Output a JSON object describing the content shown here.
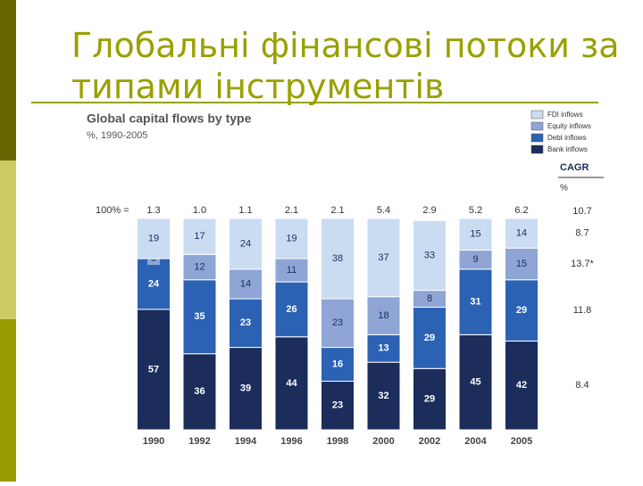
{
  "slide_title": "Глобальні фінансові потоки за типами інструментів",
  "chart_data": {
    "type": "stacked_bar",
    "title": "Global capital flows by type",
    "subtitle": "%, 1990-2005",
    "categories": [
      "1990",
      "1992",
      "1994",
      "1996",
      "1998",
      "2000",
      "2002",
      "2004",
      "2005"
    ],
    "ylim": [
      0,
      100
    ],
    "series": [
      {
        "name": "FDI inflows",
        "color": "#c9dcf2",
        "values": [
          19,
          17,
          24,
          19,
          38,
          37,
          33,
          15,
          14
        ]
      },
      {
        "name": "Equity inflows",
        "color": "#8ea5d6",
        "values": [
          0,
          12,
          14,
          11,
          23,
          18,
          8,
          9,
          15
        ]
      },
      {
        "name": "Debt inflows",
        "color": "#2c62b4",
        "values": [
          24,
          35,
          23,
          26,
          16,
          13,
          29,
          31,
          29
        ]
      },
      {
        "name": "Bank inflows",
        "color": "#1c2d5c",
        "values": [
          57,
          36,
          39,
          44,
          23,
          32,
          29,
          45,
          42
        ]
      }
    ],
    "totals": {
      "label": "100% =",
      "values": [
        1.3,
        1.0,
        1.1,
        2.1,
        2.1,
        5.4,
        2.9,
        5.2,
        6.2
      ],
      "value_labels": [
        "1.3",
        "1.0",
        "1.1",
        "2.1",
        "2.1",
        "5.4",
        "2.9",
        "5.2",
        "6.2"
      ]
    },
    "cagr": {
      "title": "CAGR",
      "unit": "%",
      "total": 10.7,
      "values": [
        8.7,
        13.7,
        11.8,
        8.4
      ],
      "value_labels": [
        "8.7",
        "13.7*",
        "11.8",
        "8.4"
      ]
    }
  }
}
